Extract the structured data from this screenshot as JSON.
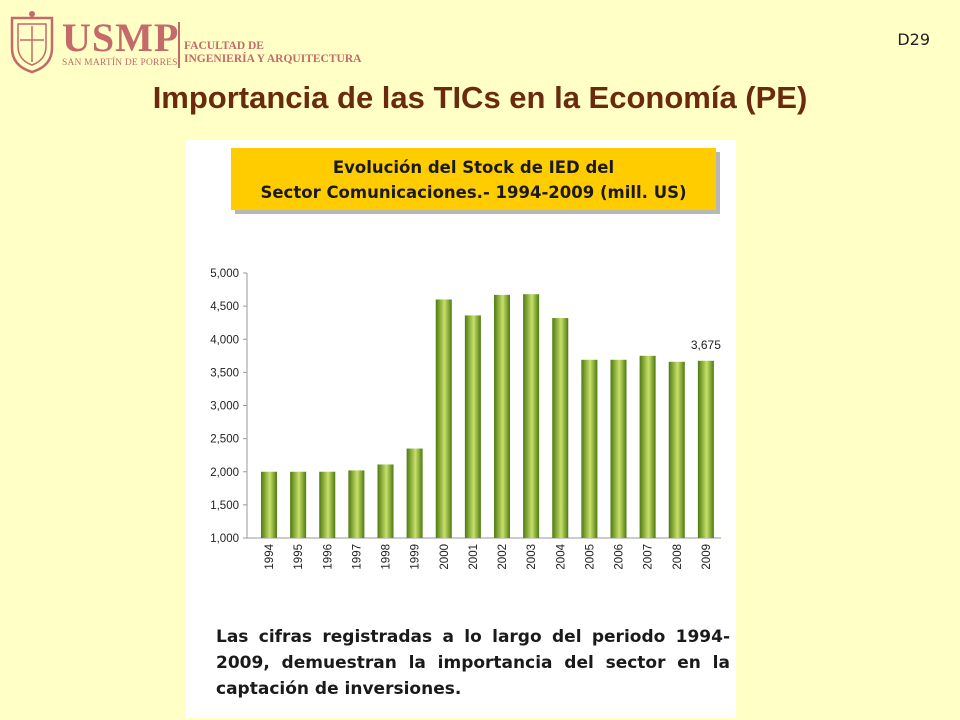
{
  "header": {
    "logo_text": "USMP",
    "logo_subtitle": "SAN MARTÍN DE PORRES",
    "faculty_line1": "FACULTAD DE",
    "faculty_line2": "INGENIERÍA Y ARQUITECTURA",
    "slide_number": "D29",
    "title": "Importancia de las TICs en la Economía (PE)"
  },
  "colors": {
    "background": "#ffffc6",
    "title": "#6b2a0e",
    "banner": "#ffcc00",
    "bar_top": "#c8e06a",
    "bar_bottom": "#4e7a10"
  },
  "chart_data": {
    "type": "bar",
    "title_line1": "Evolución del Stock de IED del",
    "title_line2": "Sector Comunicaciones.- 1994-2009 (mill. US)",
    "categories": [
      "1994",
      "1995",
      "1996",
      "1997",
      "1998",
      "1999",
      "2000",
      "2001",
      "2002",
      "2003",
      "2004",
      "2005",
      "2006",
      "2007",
      "2008",
      "2009"
    ],
    "values": [
      2000,
      2000,
      2000,
      2020,
      2110,
      2350,
      4600,
      4360,
      4670,
      4680,
      4320,
      3690,
      3690,
      3750,
      3660,
      3675
    ],
    "ylim": [
      1000,
      5000
    ],
    "yticks": [
      "1,000",
      "1,500",
      "2,000",
      "2,500",
      "3,000",
      "3,500",
      "4,000",
      "4,500",
      "5,000"
    ],
    "ytick_values": [
      1000,
      1500,
      2000,
      2500,
      3000,
      3500,
      4000,
      4500,
      5000
    ],
    "data_label": {
      "category": "2009",
      "text": "3,675"
    },
    "grid": false,
    "legend": "none"
  },
  "caption": "Las cifras registradas a lo largo del periodo 1994-2009, demuestran la importancia del sector en la captación de inversiones."
}
